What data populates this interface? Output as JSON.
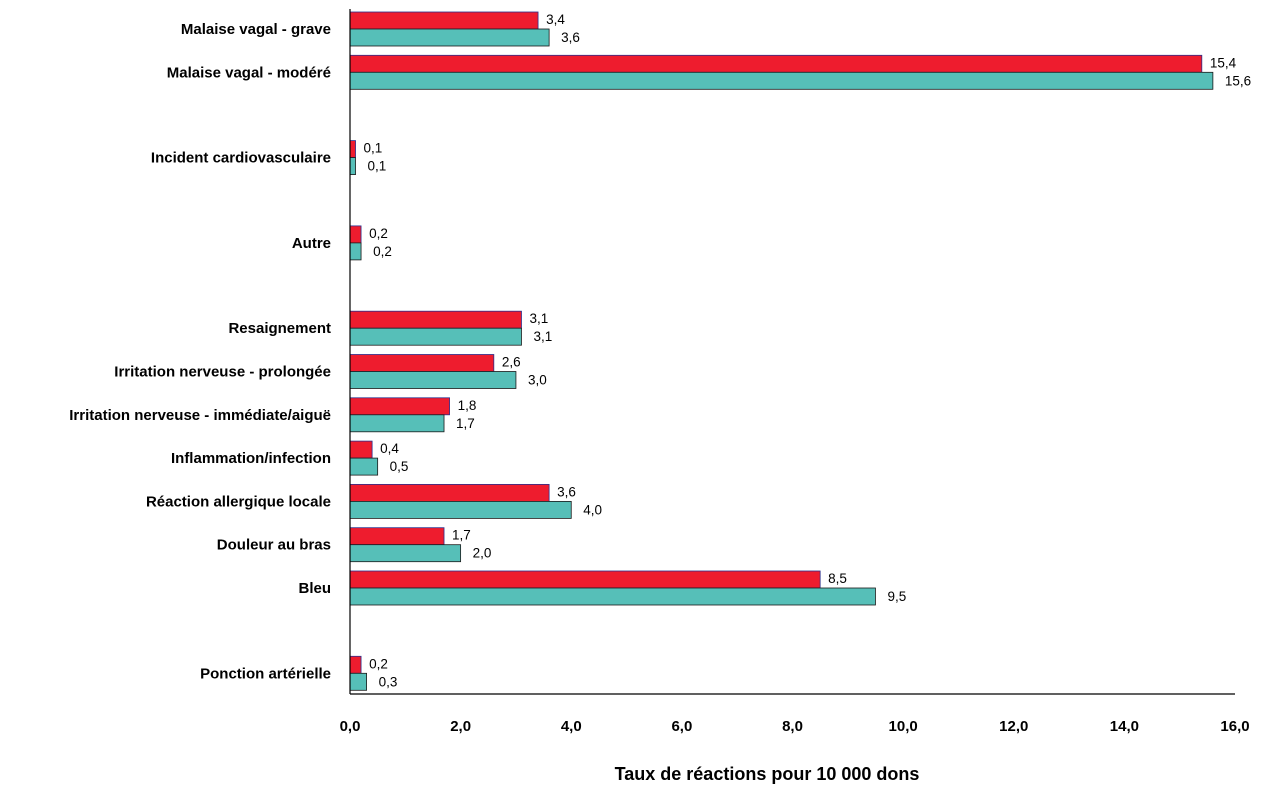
{
  "chart_data": {
    "type": "bar",
    "orientation": "horizontal",
    "xlabel": "Taux de réactions pour 10 000 dons",
    "xlim": [
      0,
      16
    ],
    "x_ticks": [
      "0,0",
      "2,0",
      "4,0",
      "6,0",
      "8,0",
      "10,0",
      "12,0",
      "14,0",
      "16,0"
    ],
    "grid": false,
    "legend": "none",
    "series_colors": [
      "#ee1c2e",
      "#56bfb8"
    ],
    "groups": [
      {
        "categories": [
          "Malaise vagal - grave",
          "Malaise vagal - modéré"
        ],
        "series": [
          {
            "values": [
              3.4,
              15.4
            ],
            "labels": [
              "3,4",
              "15,4"
            ]
          },
          {
            "values": [
              3.6,
              15.6
            ],
            "labels": [
              "3,6",
              "15,6"
            ]
          }
        ]
      },
      {
        "categories": [
          "Incident cardiovasculaire"
        ],
        "series": [
          {
            "values": [
              0.1
            ],
            "labels": [
              "0,1"
            ]
          },
          {
            "values": [
              0.1
            ],
            "labels": [
              "0,1"
            ]
          }
        ]
      },
      {
        "categories": [
          "Autre"
        ],
        "series": [
          {
            "values": [
              0.2
            ],
            "labels": [
              "0,2"
            ]
          },
          {
            "values": [
              0.2
            ],
            "labels": [
              "0,2"
            ]
          }
        ]
      },
      {
        "categories": [
          "Resaignement",
          "Irritation nerveuse - prolongée",
          "Irritation nerveuse - immédiate/aiguë",
          "Inflammation/infection",
          "Réaction allergique locale",
          "Douleur au bras",
          "Bleu"
        ],
        "series": [
          {
            "values": [
              3.1,
              2.6,
              1.8,
              0.4,
              3.6,
              1.7,
              8.5
            ],
            "labels": [
              "3,1",
              "2,6",
              "1,8",
              "0,4",
              "3,6",
              "1,7",
              "8,5"
            ]
          },
          {
            "values": [
              3.1,
              3.0,
              1.7,
              0.5,
              4.0,
              2.0,
              9.5
            ],
            "labels": [
              "3,1",
              "3,0",
              "1,7",
              "0,5",
              "4,0",
              "2,0",
              "9,5"
            ]
          }
        ]
      },
      {
        "categories": [
          "Ponction artérielle"
        ],
        "series": [
          {
            "values": [
              0.2
            ],
            "labels": [
              "0,2"
            ]
          },
          {
            "values": [
              0.3
            ],
            "labels": [
              "0,3"
            ]
          }
        ]
      }
    ]
  }
}
